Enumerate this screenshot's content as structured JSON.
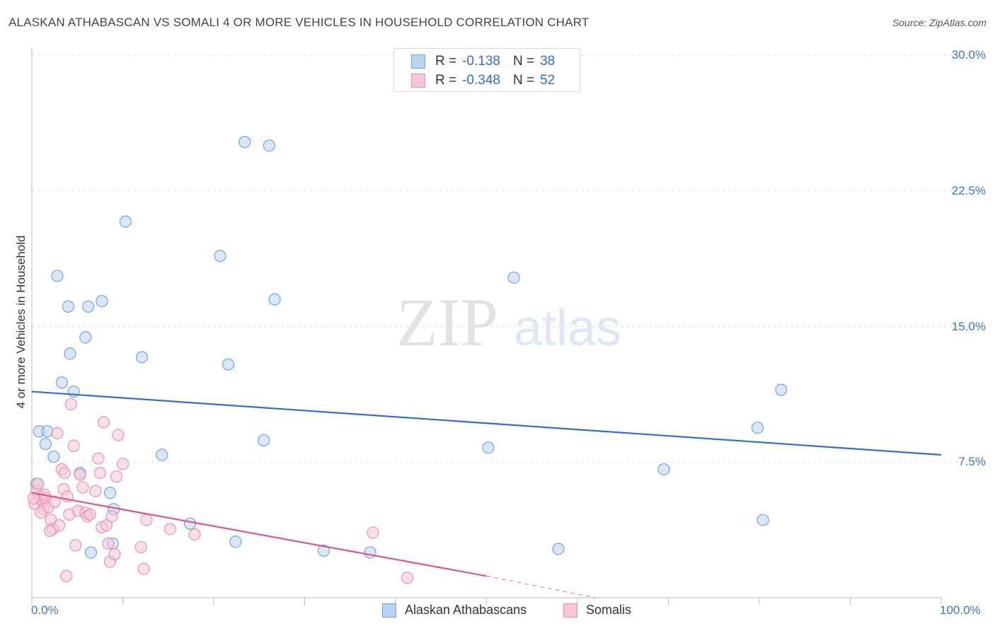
{
  "title": "ALASKAN ATHABASCAN VS SOMALI 4 OR MORE VEHICLES IN HOUSEHOLD CORRELATION CHART",
  "source": "Source: ZipAtlas.com",
  "watermark": {
    "zip": "ZIP",
    "atlas": "atlas"
  },
  "legend": {
    "rows": [
      {
        "r_label": "R =",
        "r_value": "-0.138",
        "n_label": "N =",
        "n_value": "38"
      },
      {
        "r_label": "R =",
        "r_value": "-0.348",
        "n_label": "N =",
        "n_value": "52"
      }
    ]
  },
  "chart_data": {
    "type": "scatter",
    "title": "ALASKAN ATHABASCAN VS SOMALI 4 OR MORE VEHICLES IN HOUSEHOLD CORRELATION CHART",
    "xlabel": "",
    "ylabel": "4 or more Vehicles in Household",
    "xlim": [
      0,
      100
    ],
    "ylim": [
      0,
      30
    ],
    "x_tick_labels": [
      "0.0%",
      "100.0%"
    ],
    "y_ticks": [
      7.5,
      15.0,
      22.5,
      30.0
    ],
    "y_tick_labels": [
      "7.5%",
      "15.0%",
      "22.5%",
      "30.0%"
    ],
    "grid": true,
    "series": [
      {
        "name": "Alaskan Athabascans",
        "color": "#6fa3e0",
        "fill": "#b9d3f3",
        "trend": {
          "x": [
            0,
            100
          ],
          "y": [
            11.4,
            7.9
          ],
          "color": "#2f6fd1"
        },
        "points": [
          [
            23.4,
            25.2
          ],
          [
            26.1,
            25.0
          ],
          [
            10.3,
            20.8
          ],
          [
            20.7,
            18.9
          ],
          [
            2.8,
            17.8
          ],
          [
            53.0,
            17.7
          ],
          [
            7.7,
            16.4
          ],
          [
            26.7,
            16.5
          ],
          [
            4.0,
            16.1
          ],
          [
            6.2,
            16.1
          ],
          [
            5.9,
            14.4
          ],
          [
            4.2,
            13.5
          ],
          [
            12.1,
            13.3
          ],
          [
            21.6,
            12.9
          ],
          [
            3.3,
            11.9
          ],
          [
            4.6,
            11.4
          ],
          [
            82.4,
            11.5
          ],
          [
            0.8,
            9.2
          ],
          [
            1.7,
            9.2
          ],
          [
            79.8,
            9.4
          ],
          [
            1.5,
            8.5
          ],
          [
            25.5,
            8.7
          ],
          [
            50.2,
            8.3
          ],
          [
            2.4,
            7.8
          ],
          [
            14.3,
            7.9
          ],
          [
            5.3,
            6.9
          ],
          [
            69.5,
            7.1
          ],
          [
            0.5,
            6.3
          ],
          [
            8.6,
            5.8
          ],
          [
            9.0,
            4.9
          ],
          [
            17.4,
            4.1
          ],
          [
            80.4,
            4.3
          ],
          [
            8.9,
            3.0
          ],
          [
            6.5,
            2.5
          ],
          [
            22.4,
            3.1
          ],
          [
            32.1,
            2.6
          ],
          [
            37.2,
            2.5
          ],
          [
            57.9,
            2.7
          ]
        ]
      },
      {
        "name": "Somalis",
        "color": "#ec8fae",
        "fill": "#f7c6d6",
        "trend": {
          "x": [
            0,
            50
          ],
          "y": [
            5.8,
            1.2
          ],
          "color": "#e0558a",
          "dashed_to": [
            62,
            0
          ]
        },
        "points": [
          [
            0.3,
            5.2
          ],
          [
            0.5,
            5.9
          ],
          [
            0.7,
            6.3
          ],
          [
            0.9,
            5.6
          ],
          [
            1.1,
            5.4
          ],
          [
            1.3,
            4.9
          ],
          [
            1.5,
            5.5
          ],
          [
            1.8,
            5.0
          ],
          [
            2.1,
            4.3
          ],
          [
            2.3,
            3.8
          ],
          [
            2.5,
            5.3
          ],
          [
            2.8,
            9.1
          ],
          [
            3.0,
            4.0
          ],
          [
            3.3,
            7.1
          ],
          [
            3.5,
            6.0
          ],
          [
            3.6,
            6.9
          ],
          [
            3.9,
            5.6
          ],
          [
            4.1,
            4.6
          ],
          [
            4.3,
            10.7
          ],
          [
            4.6,
            8.4
          ],
          [
            4.8,
            2.9
          ],
          [
            5.1,
            4.8
          ],
          [
            5.3,
            6.8
          ],
          [
            5.6,
            6.1
          ],
          [
            5.9,
            4.7
          ],
          [
            6.1,
            4.5
          ],
          [
            6.4,
            4.6
          ],
          [
            7.0,
            5.9
          ],
          [
            7.3,
            7.7
          ],
          [
            7.5,
            6.9
          ],
          [
            7.7,
            3.9
          ],
          [
            7.9,
            9.7
          ],
          [
            8.2,
            4.0
          ],
          [
            8.4,
            3.0
          ],
          [
            8.6,
            2.0
          ],
          [
            8.8,
            4.5
          ],
          [
            9.1,
            2.4
          ],
          [
            9.3,
            6.7
          ],
          [
            9.5,
            9.0
          ],
          [
            10.0,
            7.4
          ],
          [
            12.0,
            2.8
          ],
          [
            12.3,
            1.6
          ],
          [
            12.6,
            4.3
          ],
          [
            15.2,
            3.8
          ],
          [
            17.9,
            3.5
          ],
          [
            3.8,
            1.2
          ],
          [
            37.5,
            3.6
          ],
          [
            41.3,
            1.1
          ],
          [
            1.0,
            4.7
          ],
          [
            2.0,
            3.7
          ],
          [
            1.4,
            5.7
          ],
          [
            0.2,
            5.5
          ]
        ]
      }
    ]
  }
}
